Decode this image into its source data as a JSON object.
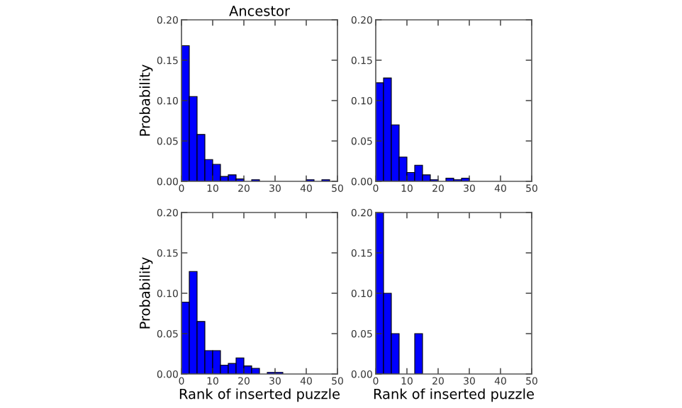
{
  "chart_data": [
    {
      "type": "histogram",
      "title": "Ancestor",
      "ylabel": "Probability",
      "color": "#0000ff",
      "bins": [
        0,
        2.5,
        5,
        7.5,
        10,
        12.5,
        15,
        17.5,
        20,
        22.5,
        25,
        27.5,
        30,
        32.5,
        35,
        37.5,
        40,
        42.5,
        45,
        47.5,
        50
      ],
      "values": [
        0.168,
        0.105,
        0.058,
        0.027,
        0.021,
        0.006,
        0.008,
        0.003,
        0,
        0.002,
        0,
        0,
        0,
        0,
        0,
        0,
        0.002,
        0,
        0.002,
        0
      ],
      "xlim": [
        0,
        50
      ],
      "ylim": [
        0,
        0.2
      ],
      "xticks": [
        0,
        10,
        20,
        30,
        40,
        50
      ],
      "yticks": [
        {
          "value": 0,
          "label": "0.00"
        },
        {
          "value": 0.05,
          "label": "0.05"
        },
        {
          "value": 0.1,
          "label": "0.10"
        },
        {
          "value": 0.15,
          "label": "0.15"
        },
        {
          "value": 0.2,
          "label": "0.20"
        }
      ],
      "grid": false
    },
    {
      "type": "histogram",
      "color": "#0000ff",
      "bins": [
        0,
        2.5,
        5,
        7.5,
        10,
        12.5,
        15,
        17.5,
        20,
        22.5,
        25,
        27.5,
        30,
        32.5,
        35,
        37.5,
        40,
        42.5,
        45,
        47.5,
        50
      ],
      "values": [
        0.122,
        0.128,
        0.07,
        0.03,
        0.011,
        0.02,
        0.008,
        0.002,
        0,
        0.004,
        0.002,
        0.004,
        0,
        0,
        0,
        0,
        0,
        0,
        0,
        0
      ],
      "xlim": [
        0,
        50
      ],
      "ylim": [
        0,
        0.2
      ],
      "xticks": [
        0,
        10,
        20,
        30,
        40,
        50
      ],
      "yticks": [
        {
          "value": 0,
          "label": "0.00"
        },
        {
          "value": 0.05,
          "label": "0.05"
        },
        {
          "value": 0.1,
          "label": "0.10"
        },
        {
          "value": 0.15,
          "label": "0.15"
        },
        {
          "value": 0.2,
          "label": "0.20"
        }
      ],
      "grid": false
    },
    {
      "type": "histogram",
      "ylabel": "Probability",
      "xlabel": "Rank of inserted puzzle",
      "color": "#0000ff",
      "bins": [
        0,
        2.5,
        5,
        7.5,
        10,
        12.5,
        15,
        17.5,
        20,
        22.5,
        25,
        27.5,
        30,
        32.5,
        35,
        37.5,
        40,
        42.5,
        45,
        47.5,
        50
      ],
      "values": [
        0.089,
        0.127,
        0.065,
        0.029,
        0.029,
        0.011,
        0.013,
        0.02,
        0.01,
        0.007,
        0,
        0.002,
        0.002,
        0,
        0,
        0,
        0,
        0,
        0,
        0
      ],
      "xlim": [
        0,
        50
      ],
      "ylim": [
        0,
        0.2
      ],
      "xticks": [
        0,
        10,
        20,
        30,
        40,
        50
      ],
      "yticks": [
        {
          "value": 0,
          "label": "0.00"
        },
        {
          "value": 0.05,
          "label": "0.05"
        },
        {
          "value": 0.1,
          "label": "0.10"
        },
        {
          "value": 0.15,
          "label": "0.15"
        },
        {
          "value": 0.2,
          "label": "0.20"
        }
      ],
      "grid": false
    },
    {
      "type": "histogram",
      "xlabel": "Rank of inserted puzzle",
      "color": "#0000ff",
      "bins": [
        0,
        2.5,
        5,
        7.5,
        10,
        12.5,
        15,
        17.5,
        20,
        22.5,
        25,
        27.5,
        30,
        32.5,
        35,
        37.5,
        40,
        42.5,
        45,
        47.5,
        50
      ],
      "values": [
        0.2,
        0.1,
        0.05,
        0,
        0,
        0.05,
        0,
        0,
        0,
        0,
        0,
        0,
        0,
        0,
        0,
        0,
        0,
        0,
        0,
        0
      ],
      "xlim": [
        0,
        50
      ],
      "ylim": [
        0,
        0.2
      ],
      "xticks": [
        0,
        10,
        20,
        30,
        40,
        50
      ],
      "yticks": [
        {
          "value": 0,
          "label": "0.00"
        },
        {
          "value": 0.05,
          "label": "0.05"
        },
        {
          "value": 0.1,
          "label": "0.10"
        },
        {
          "value": 0.15,
          "label": "0.15"
        },
        {
          "value": 0.2,
          "label": "0.20"
        }
      ],
      "grid": false
    }
  ]
}
